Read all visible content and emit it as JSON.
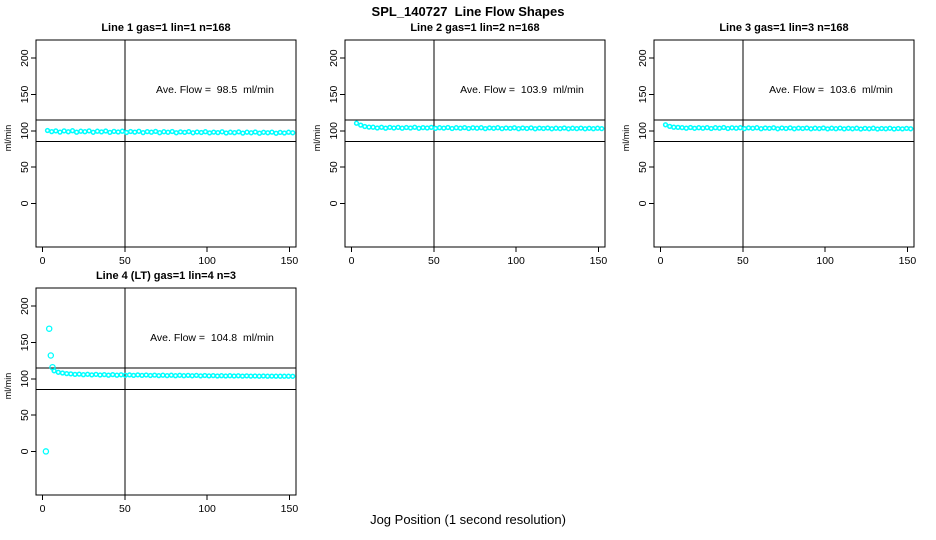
{
  "figure": {
    "title": "SPL_140727  Line Flow Shapes",
    "xlabel": "Jog Position (1 second resolution)",
    "background_color": "#ffffff",
    "point_color": "#00ffff",
    "axis_color": "#000000"
  },
  "chart_data": [
    {
      "type": "scatter",
      "title": "Line 1 gas=1 lin=1 n=168",
      "annotation": "Ave. Flow =  98.5  ml/min",
      "ave_flow_ml_min": 98.5,
      "n": 168,
      "ylabel": "ml/min",
      "xlim": [
        -4,
        154
      ],
      "ylim": [
        -60,
        225
      ],
      "xticks": [
        0,
        50,
        100,
        150
      ],
      "yticks": [
        0,
        50,
        100,
        150,
        200
      ],
      "vline_x": 50,
      "hlines": [
        115,
        85
      ],
      "x_start": 3,
      "x_end": 152,
      "y_values": [
        100.4,
        98.9,
        99.8,
        98.2,
        99.9,
        98.6,
        100.1,
        98.0,
        99.5,
        98.8,
        99.9,
        97.9,
        99.4,
        98.5,
        99.7,
        97.8,
        99.2,
        98.4,
        99.5,
        97.7,
        99.0,
        98.2,
        99.3,
        97.5,
        98.9,
        98.1,
        99.2,
        97.4,
        98.7,
        97.9,
        99.0,
        97.3,
        98.5,
        97.8,
        98.9,
        97.2,
        98.4,
        97.6,
        98.8,
        97.1,
        98.2,
        97.5,
        98.6,
        96.9,
        98.1,
        97.4,
        98.5,
        96.8,
        98.0,
        97.3,
        98.3,
        96.7,
        97.9,
        97.2,
        98.2,
        96.6,
        97.8,
        97.0,
        98.1,
        97.2
      ],
      "outliers": []
    },
    {
      "type": "scatter",
      "title": "Line 2 gas=1 lin=2 n=168",
      "annotation": "Ave. Flow =  103.9  ml/min",
      "ave_flow_ml_min": 103.9,
      "n": 168,
      "ylabel": "ml/min",
      "xlim": [
        -4,
        154
      ],
      "ylim": [
        -60,
        225
      ],
      "xticks": [
        0,
        50,
        100,
        150
      ],
      "yticks": [
        0,
        50,
        100,
        150,
        200
      ],
      "vline_x": 50,
      "hlines": [
        115,
        85
      ],
      "x_start": 3,
      "x_end": 152,
      "y_values": [
        110.5,
        107.8,
        105.9,
        105.1,
        104.9,
        103.9,
        104.8,
        103.6,
        104.6,
        103.8,
        104.7,
        103.5,
        104.5,
        103.9,
        104.8,
        103.4,
        104.4,
        103.8,
        104.6,
        103.3,
        104.3,
        103.7,
        104.5,
        103.2,
        104.2,
        103.6,
        104.4,
        103.1,
        104.1,
        103.5,
        104.3,
        103.0,
        104.0,
        103.4,
        104.2,
        103.0,
        103.9,
        103.3,
        104.1,
        102.9,
        103.8,
        103.2,
        104.0,
        102.8,
        103.7,
        103.1,
        103.9,
        102.8,
        103.6,
        103.0,
        103.8,
        102.7,
        103.5,
        103.0,
        103.7,
        102.7,
        103.4,
        102.9,
        103.6,
        103.0
      ],
      "outliers": []
    },
    {
      "type": "scatter",
      "title": "Line 3 gas=1 lin=3 n=168",
      "annotation": "Ave. Flow =  103.6  ml/min",
      "ave_flow_ml_min": 103.6,
      "n": 168,
      "ylabel": "ml/min",
      "xlim": [
        -4,
        154
      ],
      "ylim": [
        -60,
        225
      ],
      "xticks": [
        0,
        50,
        100,
        150
      ],
      "yticks": [
        0,
        50,
        100,
        150,
        200
      ],
      "vline_x": 50,
      "hlines": [
        115,
        85
      ],
      "x_start": 3,
      "x_end": 152,
      "y_values": [
        108.2,
        106.0,
        105.0,
        104.6,
        104.4,
        103.6,
        104.5,
        103.4,
        104.3,
        103.5,
        104.4,
        103.2,
        104.2,
        103.6,
        104.5,
        103.1,
        104.1,
        103.5,
        104.3,
        103.0,
        104.0,
        103.4,
        104.2,
        102.9,
        103.9,
        103.3,
        104.1,
        102.8,
        103.8,
        103.2,
        104.0,
        102.8,
        103.7,
        103.1,
        103.9,
        102.7,
        103.6,
        103.0,
        103.8,
        102.6,
        103.5,
        102.9,
        103.7,
        102.6,
        103.4,
        102.8,
        103.6,
        102.5,
        103.3,
        102.7,
        103.5,
        102.4,
        103.2,
        102.7,
        103.4,
        102.4,
        103.1,
        102.6,
        103.3,
        102.7
      ],
      "outliers": []
    },
    {
      "type": "scatter",
      "title": "Line 4 (LT) gas=1 lin=4 n=3",
      "annotation": "Ave. Flow =  104.8  ml/min",
      "ave_flow_ml_min": 104.8,
      "n": 3,
      "ylabel": "ml/min",
      "xlim": [
        -4,
        154
      ],
      "ylim": [
        -60,
        225
      ],
      "xticks": [
        0,
        50,
        100,
        150
      ],
      "yticks": [
        0,
        50,
        100,
        150,
        200
      ],
      "vline_x": 50,
      "hlines": [
        115,
        85
      ],
      "x_start": 7,
      "x_end": 152,
      "y_values": [
        111.0,
        109.0,
        108.0,
        107.2,
        106.8,
        106.0,
        106.5,
        105.6,
        106.2,
        105.4,
        106.0,
        105.2,
        105.8,
        105.0,
        105.7,
        104.9,
        105.5,
        104.8,
        105.4,
        104.7,
        105.3,
        104.6,
        105.2,
        104.5,
        105.1,
        104.4,
        105.0,
        104.4,
        104.9,
        104.3,
        104.8,
        104.2,
        104.7,
        104.1,
        104.6,
        104.0,
        104.5,
        104.0,
        104.4,
        103.9,
        104.3,
        103.8,
        104.2,
        103.8,
        104.1,
        103.7,
        104.0,
        103.7,
        103.9,
        103.6,
        103.8,
        103.6,
        103.7,
        103.5,
        103.6,
        103.5,
        103.5,
        103.4
      ],
      "outliers": [
        [
          2,
          0
        ],
        [
          4,
          169
        ],
        [
          5,
          132
        ],
        [
          6,
          116
        ]
      ]
    }
  ]
}
